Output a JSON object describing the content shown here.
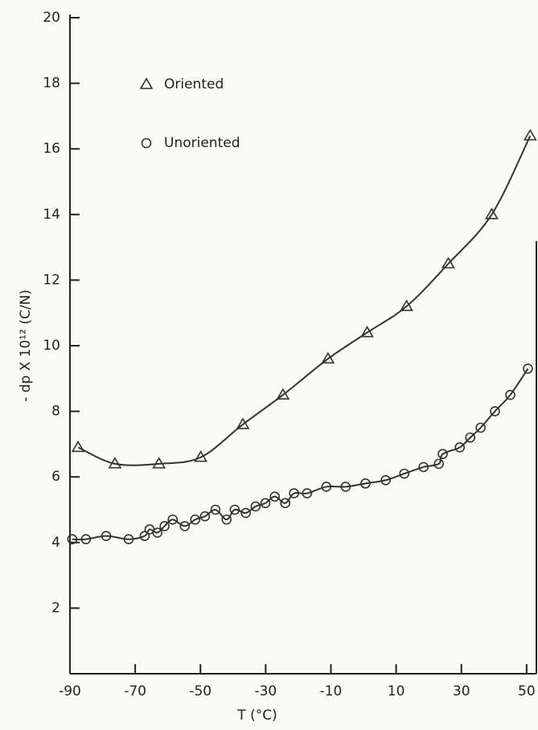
{
  "chart_data": {
    "type": "scatter",
    "xlabel": "T (°C)",
    "ylabel": "- dp X 10¹² (C/N)",
    "xlim": [
      -90,
      53
    ],
    "xticks": [
      -90,
      -70,
      -50,
      -30,
      -10,
      10,
      30,
      50
    ],
    "ylim": [
      0,
      20
    ],
    "yticks": [
      2,
      4,
      6,
      8,
      10,
      12,
      14,
      16,
      18,
      20
    ],
    "series": [
      {
        "name": "Oriented",
        "marker": "triangle",
        "color": "#333333",
        "x": [
          -87.5,
          -76.2,
          -62.7,
          -49.9,
          -37.0,
          -24.7,
          -10.9,
          1.1,
          13.2,
          26.0,
          39.3,
          51.1
        ],
        "values": [
          6.9,
          6.4,
          6.4,
          6.6,
          7.6,
          8.5,
          9.6,
          10.4,
          11.2,
          12.5,
          14.0,
          16.4
        ]
      },
      {
        "name": "Unoriented",
        "marker": "circle",
        "color": "#333333",
        "x": [
          -89.3,
          -85.1,
          -78.9,
          -72.0,
          -67.1,
          -65.6,
          -63.2,
          -61.0,
          -58.5,
          -54.8,
          -51.6,
          -48.6,
          -45.4,
          -42.0,
          -39.5,
          -36.1,
          -33.1,
          -30.1,
          -27.2,
          -24.0,
          -21.3,
          -17.3,
          -11.4,
          -5.5,
          0.6,
          6.8,
          12.5,
          18.4,
          23.1,
          24.3,
          29.5,
          32.7,
          35.9,
          40.3,
          45.0,
          50.4
        ],
        "values": [
          4.1,
          4.1,
          4.2,
          4.1,
          4.2,
          4.4,
          4.3,
          4.5,
          4.7,
          4.5,
          4.7,
          4.8,
          5.0,
          4.7,
          5.0,
          4.9,
          5.1,
          5.2,
          5.4,
          5.2,
          5.5,
          5.5,
          5.7,
          5.7,
          5.8,
          5.9,
          6.1,
          6.3,
          6.4,
          6.7,
          6.9,
          7.2,
          7.5,
          8.0,
          8.5,
          9.3
        ]
      }
    ]
  }
}
